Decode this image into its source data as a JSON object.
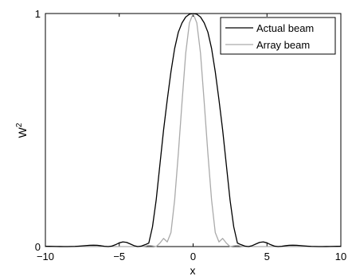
{
  "chart_data": {
    "type": "line",
    "title": "",
    "xlabel": "x",
    "ylabel": "W",
    "ylabel_superscript": "2",
    "xlim": [
      -10,
      10
    ],
    "ylim": [
      0,
      1
    ],
    "xticks": [
      -10,
      -5,
      0,
      5,
      10
    ],
    "xtick_labels": [
      "−10",
      "−5",
      "0",
      "5",
      "10"
    ],
    "yticks": [
      0,
      1
    ],
    "ytick_labels": [
      "0",
      "1"
    ],
    "grid": false,
    "legend_position": "top-right",
    "series": [
      {
        "name": "Actual beam",
        "color": "#000000",
        "x": [
          -10,
          -9.75,
          -9.5,
          -9.25,
          -9,
          -8.75,
          -8.5,
          -8.25,
          -8,
          -7.75,
          -7.5,
          -7.25,
          -7,
          -6.75,
          -6.5,
          -6.25,
          -6,
          -5.75,
          -5.5,
          -5.25,
          -5,
          -4.75,
          -4.5,
          -4.25,
          -4,
          -3.75,
          -3.5,
          -3.25,
          -3,
          -2.75,
          -2.5,
          -2.25,
          -2,
          -1.75,
          -1.5,
          -1.25,
          -1,
          -0.75,
          -0.5,
          -0.25,
          0,
          0.25,
          0.5,
          0.75,
          1,
          1.25,
          1.5,
          1.75,
          2,
          2.25,
          2.5,
          2.75,
          3,
          3.25,
          3.5,
          3.75,
          4,
          4.25,
          4.5,
          4.75,
          5,
          5.25,
          5.5,
          5.75,
          6,
          6.25,
          6.5,
          6.75,
          7,
          7.25,
          7.5,
          7.75,
          8,
          8.25,
          8.5,
          8.75,
          9,
          9.25,
          9.5,
          9.75,
          10
        ],
        "values": [
          0.0012,
          0.0011,
          0.0008,
          0.0004,
          0.0002,
          0.0001,
          0.0,
          0.0003,
          0.0008,
          0.0017,
          0.0029,
          0.0042,
          0.0053,
          0.0058,
          0.0053,
          0.0036,
          0.0012,
          0.0,
          0.002,
          0.008,
          0.016,
          0.02,
          0.018,
          0.011,
          0.004,
          0.0,
          0.002,
          0.008,
          0.015,
          0.085,
          0.2,
          0.35,
          0.5,
          0.63,
          0.75,
          0.85,
          0.92,
          0.96,
          0.985,
          0.997,
          1.0,
          0.997,
          0.985,
          0.96,
          0.92,
          0.85,
          0.75,
          0.63,
          0.5,
          0.35,
          0.2,
          0.085,
          0.015,
          0.008,
          0.002,
          0.0,
          0.004,
          0.011,
          0.018,
          0.02,
          0.016,
          0.008,
          0.002,
          0.0,
          0.0012,
          0.0036,
          0.0053,
          0.0058,
          0.0053,
          0.0042,
          0.0029,
          0.0017,
          0.0008,
          0.0003,
          0.0,
          0.0001,
          0.0002,
          0.0004,
          0.0008,
          0.0011,
          0.0012
        ]
      },
      {
        "name": "Array beam",
        "color": "#aaaaaa",
        "x": [
          -10,
          -9,
          -8,
          -7,
          -6,
          -5,
          -4,
          -3.5,
          -3.25,
          -3,
          -2.75,
          -2.5,
          -2.25,
          -2,
          -1.75,
          -1.5,
          -1.25,
          -1,
          -0.75,
          -0.5,
          -0.25,
          0,
          0.25,
          0.5,
          0.75,
          1,
          1.25,
          1.5,
          1.75,
          2,
          2.25,
          2.5,
          2.75,
          3,
          3.25,
          3.5,
          4,
          5,
          6,
          7,
          8,
          9,
          10
        ],
        "values": [
          0,
          0,
          0,
          0,
          0,
          0,
          0,
          0,
          0.0015,
          0.005,
          0.003,
          0.0,
          0.015,
          0.035,
          0.02,
          0.06,
          0.2,
          0.4,
          0.62,
          0.83,
          0.96,
          1.0,
          0.96,
          0.83,
          0.62,
          0.4,
          0.2,
          0.06,
          0.02,
          0.035,
          0.015,
          0.0,
          0.003,
          0.005,
          0.0015,
          0,
          0,
          0,
          0,
          0,
          0,
          0,
          0
        ]
      }
    ]
  }
}
